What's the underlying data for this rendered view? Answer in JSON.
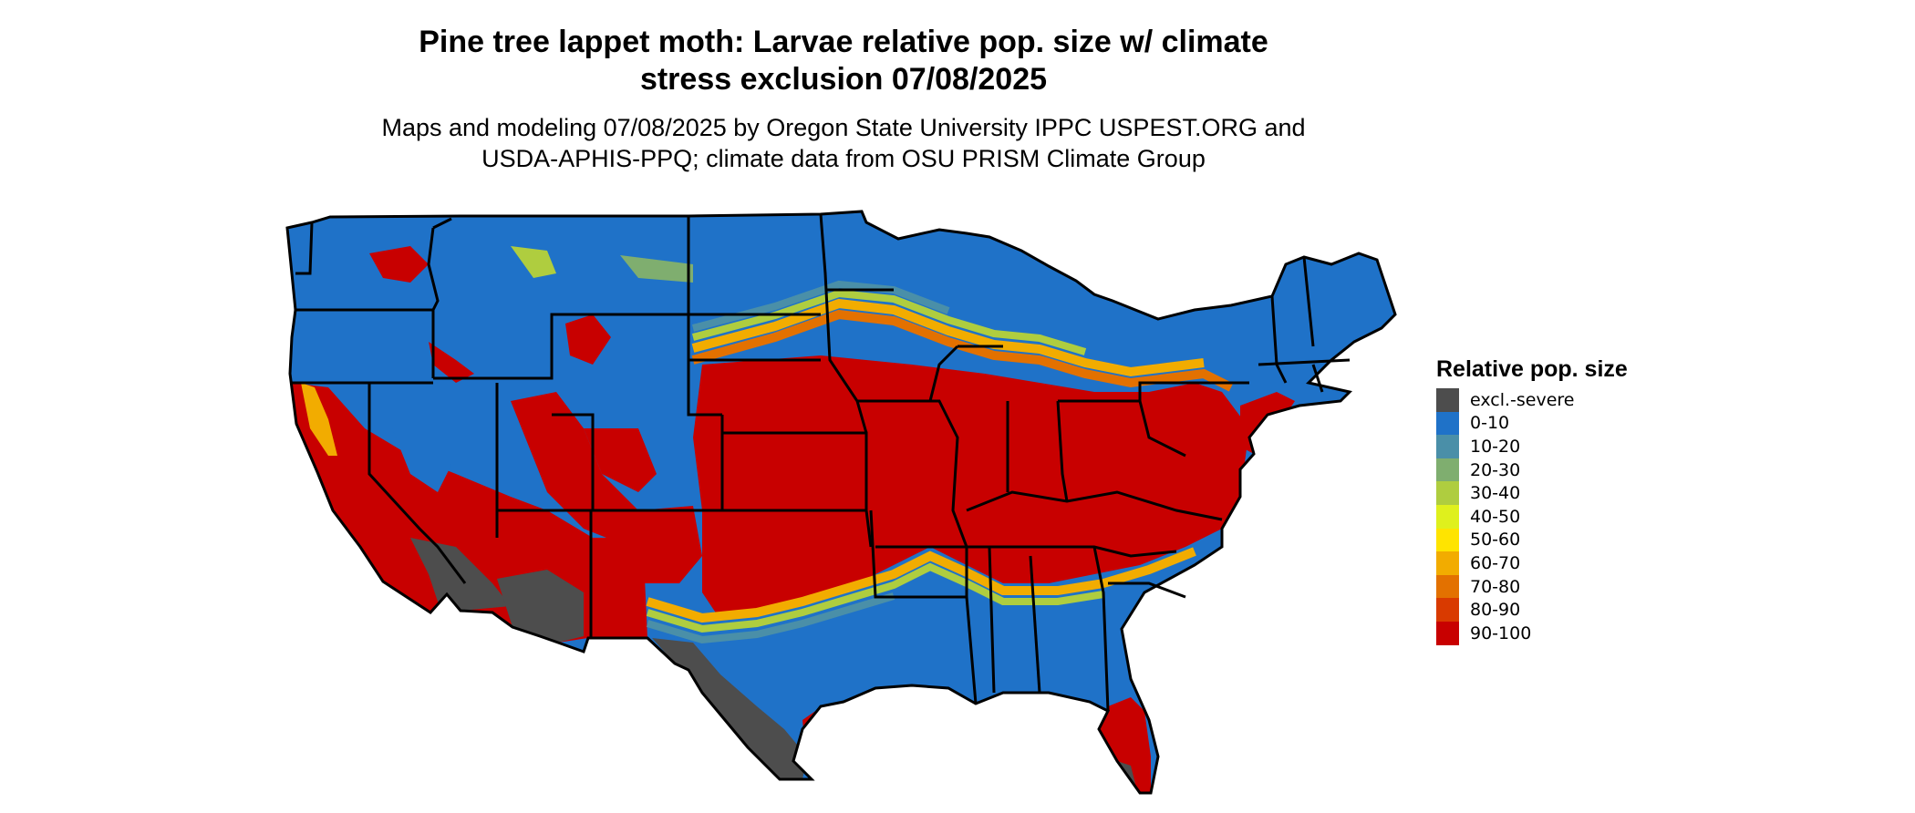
{
  "title_line1": "Pine tree lappet moth: Larvae relative pop. size w/ climate",
  "title_line2": "stress exclusion 07/08/2025",
  "subtitle_line1": "Maps and modeling 07/08/2025 by Oregon State University IPPC USPEST.ORG and",
  "subtitle_line2": "USDA-APHIS-PPQ; climate data from OSU PRISM Climate Group",
  "legend": {
    "title": "Relative pop. size",
    "items": [
      {
        "label": "excl.-severe",
        "color": "#4d4d4d"
      },
      {
        "label": "0-10",
        "color": "#1f72c8"
      },
      {
        "label": "10-20",
        "color": "#4a8fa8"
      },
      {
        "label": "20-30",
        "color": "#7fae6f"
      },
      {
        "label": "30-40",
        "color": "#afcd3f"
      },
      {
        "label": "40-50",
        "color": "#dff01d"
      },
      {
        "label": "50-60",
        "color": "#ffe400"
      },
      {
        "label": "60-70",
        "color": "#f2ac00"
      },
      {
        "label": "70-80",
        "color": "#e37100"
      },
      {
        "label": "80-90",
        "color": "#d93a00"
      },
      {
        "label": "90-100",
        "color": "#c80000"
      }
    ]
  }
}
